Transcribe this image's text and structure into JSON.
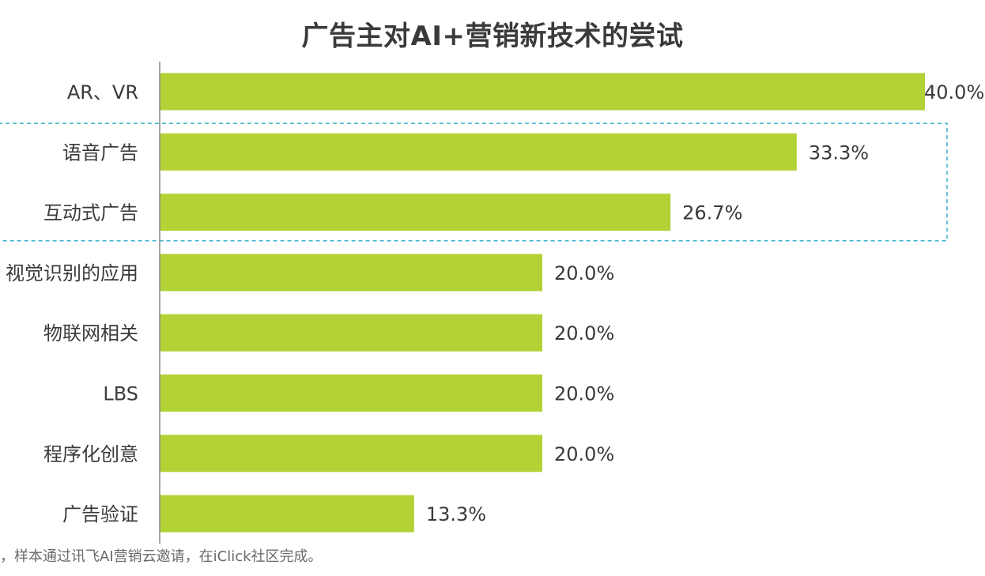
{
  "chart_data": {
    "type": "bar",
    "orientation": "horizontal",
    "title": "广告主对AI+营销新技术的尝试",
    "categories": [
      "AR、VR",
      "语音广告",
      "互动式广告",
      "视觉识别的应用",
      "物联网相关",
      "LBS",
      "程序化创意",
      "广告验证"
    ],
    "values": [
      40.0,
      33.3,
      26.7,
      20.0,
      20.0,
      20.0,
      20.0,
      13.3
    ],
    "value_labels": [
      "40.0%",
      "33.3%",
      "26.7%",
      "20.0%",
      "20.0%",
      "20.0%",
      "20.0%",
      "13.3%"
    ],
    "xlim": [
      0,
      40
    ],
    "grid": false,
    "highlight_box_categories": [
      "语音广告",
      "互动式广告"
    ],
    "bar_color": "#b2d235",
    "highlight_box_color": "#3bb3d0"
  },
  "footnote": "，样本通过讯飞AI营销云邀请，在iClick社区完成。"
}
